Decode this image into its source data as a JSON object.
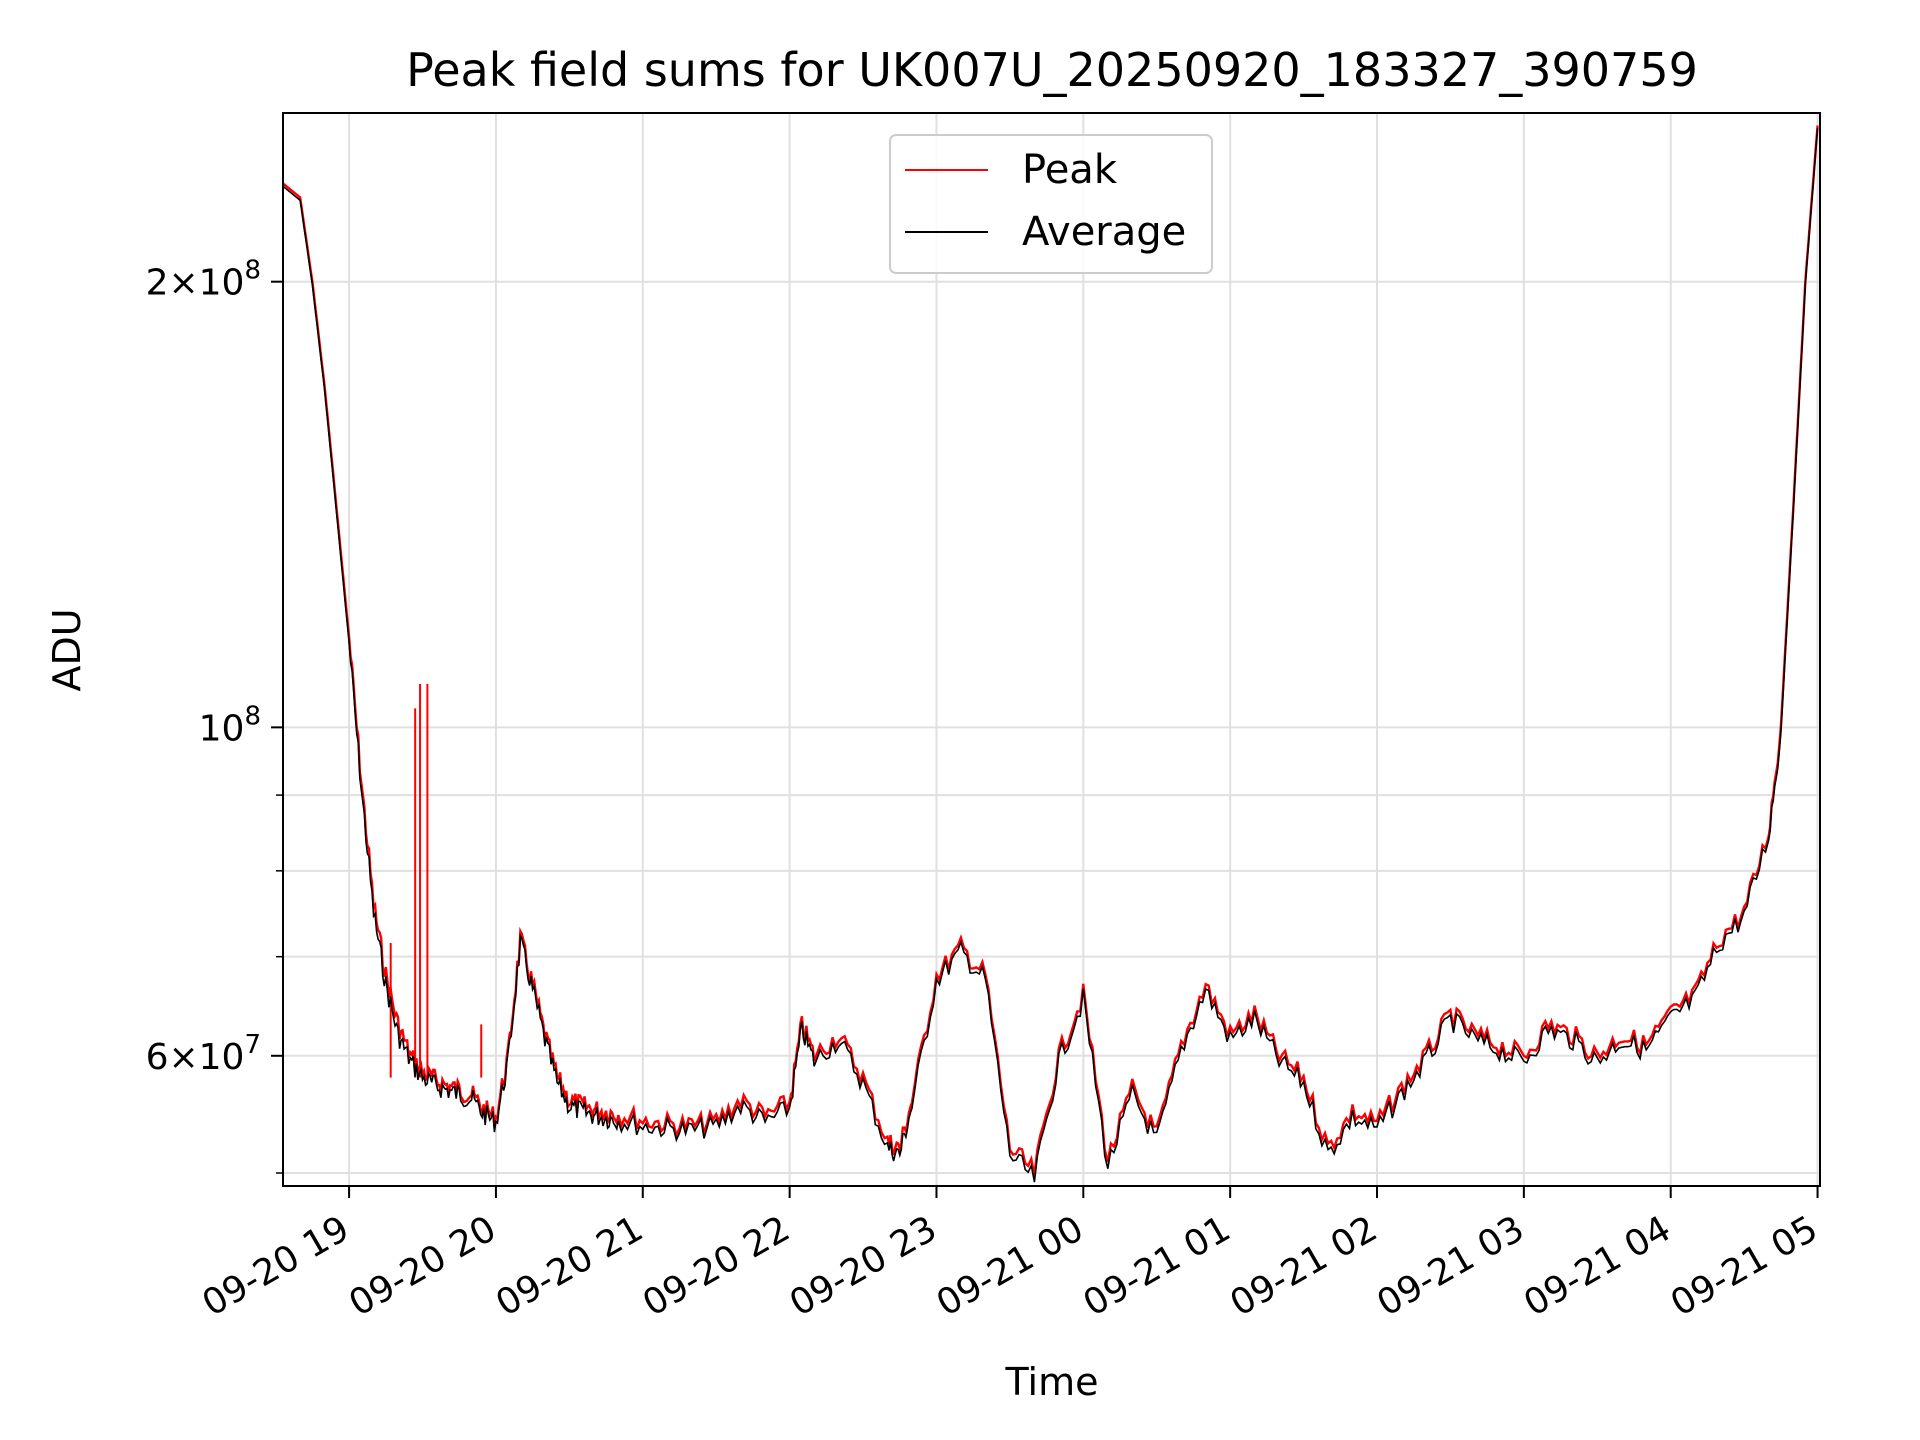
{
  "chart_data": {
    "type": "line",
    "title": "Peak field sums for UK007U_20250920_183327_390759",
    "xlabel": "Time",
    "ylabel": "ADU",
    "y_scale": "log",
    "ylim": [
      49000000,
      260000000
    ],
    "xlim": [
      "2025-09-20 18:33",
      "2025-09-21 05:01"
    ],
    "grid": true,
    "legend_position": "top-center",
    "x_tick_labels": [
      "09-20 19",
      "09-20 20",
      "09-20 21",
      "09-20 22",
      "09-20 23",
      "09-21 00",
      "09-21 01",
      "09-21 02",
      "09-21 03",
      "09-21 04",
      "09-21 05"
    ],
    "y_tick_labels": [
      {
        "base": "2",
        "exp": "8",
        "value": 200000000
      },
      {
        "base": "",
        "exp": "8",
        "value": 100000000
      },
      {
        "base": "6",
        "exp": "7",
        "value": 60000000
      }
    ],
    "y_minor_ticks": [
      50000000,
      70000000,
      80000000,
      90000000
    ],
    "series": [
      {
        "name": "Peak",
        "color": "#ff0000",
        "x": [
          "18:33",
          "18:40",
          "18:45",
          "18:50",
          "18:55",
          "19:00",
          "19:05",
          "19:10",
          "19:15",
          "19:20",
          "19:25",
          "19:30",
          "19:35",
          "19:40",
          "19:45",
          "19:50",
          "19:55",
          "20:00",
          "20:05",
          "20:10",
          "20:15",
          "20:20",
          "20:25",
          "20:30",
          "20:35",
          "20:40",
          "20:45",
          "20:50",
          "21:00",
          "21:10",
          "21:20",
          "21:30",
          "21:40",
          "21:50",
          "22:00",
          "22:05",
          "22:10",
          "22:20",
          "22:30",
          "22:40",
          "22:45",
          "22:50",
          "23:00",
          "23:10",
          "23:20",
          "23:30",
          "23:40",
          "23:50",
          "00:00",
          "00:10",
          "00:20",
          "00:30",
          "00:40",
          "00:50",
          "01:00",
          "01:10",
          "01:20",
          "01:30",
          "01:40",
          "01:50",
          "02:00",
          "02:10",
          "02:20",
          "02:30",
          "02:40",
          "02:50",
          "03:00",
          "03:10",
          "03:20",
          "03:30",
          "03:40",
          "03:50",
          "04:00",
          "04:10",
          "04:20",
          "04:30",
          "04:40",
          "04:45",
          "04:50",
          "04:55",
          "05:00"
        ],
        "y": [
          233000000,
          228000000,
          200000000,
          170000000,
          140000000,
          115000000,
          92000000,
          76000000,
          68000000,
          63000000,
          60000000,
          58500000,
          57800000,
          57300000,
          56900000,
          56500000,
          55200000,
          54500000,
          60000000,
          72000000,
          67000000,
          62000000,
          58000000,
          56000000,
          55500000,
          55200000,
          55000000,
          54800000,
          54300000,
          54000000,
          53800000,
          54200000,
          56000000,
          54600000,
          55800000,
          63000000,
          60000000,
          62000000,
          58000000,
          52500000,
          52000000,
          56000000,
          68000000,
          71000000,
          68000000,
          52000000,
          50000000,
          60000000,
          66000000,
          51000000,
          57000000,
          53000000,
          61000000,
          67000000,
          62000000,
          64000000,
          60000000,
          58000000,
          52000000,
          55000000,
          54000000,
          57000000,
          60000000,
          64000000,
          62000000,
          61000000,
          60000000,
          63000000,
          62000000,
          60000000,
          62000000,
          61000000,
          64000000,
          66000000,
          72000000,
          75000000,
          85000000,
          100000000,
          140000000,
          200000000,
          255000000
        ],
        "spikes": [
          {
            "x": "19:17",
            "y": 71500000
          },
          {
            "x": "19:27",
            "y": 103000000
          },
          {
            "x": "19:29",
            "y": 107000000
          },
          {
            "x": "19:32",
            "y": 107000000
          },
          {
            "x": "19:54",
            "y": 63000000
          }
        ]
      },
      {
        "name": "Average",
        "color": "#000000",
        "x": [
          "18:33",
          "18:40",
          "18:45",
          "18:50",
          "18:55",
          "19:00",
          "19:05",
          "19:10",
          "19:15",
          "19:20",
          "19:25",
          "19:30",
          "19:35",
          "19:40",
          "19:45",
          "19:50",
          "19:55",
          "20:00",
          "20:05",
          "20:10",
          "20:15",
          "20:20",
          "20:25",
          "20:30",
          "20:35",
          "20:40",
          "20:45",
          "20:50",
          "21:00",
          "21:10",
          "21:20",
          "21:30",
          "21:40",
          "21:50",
          "22:00",
          "22:05",
          "22:10",
          "22:20",
          "22:30",
          "22:40",
          "22:45",
          "22:50",
          "23:00",
          "23:10",
          "23:20",
          "23:30",
          "23:40",
          "23:50",
          "00:00",
          "00:10",
          "00:20",
          "00:30",
          "00:40",
          "00:50",
          "01:00",
          "01:10",
          "01:20",
          "01:30",
          "01:40",
          "01:50",
          "02:00",
          "02:10",
          "02:20",
          "02:30",
          "02:40",
          "02:50",
          "03:00",
          "03:10",
          "03:20",
          "03:30",
          "03:40",
          "03:50",
          "04:00",
          "04:10",
          "04:20",
          "04:30",
          "04:40",
          "04:45",
          "04:50",
          "04:55",
          "05:00"
        ],
        "y": [
          232000000,
          227000000,
          199000000,
          169000000,
          139000000,
          114000000,
          91000000,
          75000000,
          67000000,
          62000000,
          59500000,
          58000000,
          57300000,
          56900000,
          56500000,
          56100000,
          54800000,
          54100000,
          59500000,
          71500000,
          66500000,
          61500000,
          57500000,
          55500000,
          55000000,
          54700000,
          54500000,
          54300000,
          53800000,
          53600000,
          53400000,
          53800000,
          55500000,
          54100000,
          55300000,
          62500000,
          59500000,
          61500000,
          57500000,
          52000000,
          51500000,
          55500000,
          67500000,
          70500000,
          67500000,
          51500000,
          49500000,
          59500000,
          65500000,
          50500000,
          56500000,
          52500000,
          60500000,
          66500000,
          61500000,
          63500000,
          59500000,
          57500000,
          51500000,
          54500000,
          53500000,
          56500000,
          59500000,
          63500000,
          61500000,
          60500000,
          59500000,
          62500000,
          61500000,
          59500000,
          61500000,
          60500000,
          63500000,
          65500000,
          71500000,
          74500000,
          84500000,
          99000000,
          139000000,
          199000000,
          254000000
        ]
      }
    ]
  }
}
